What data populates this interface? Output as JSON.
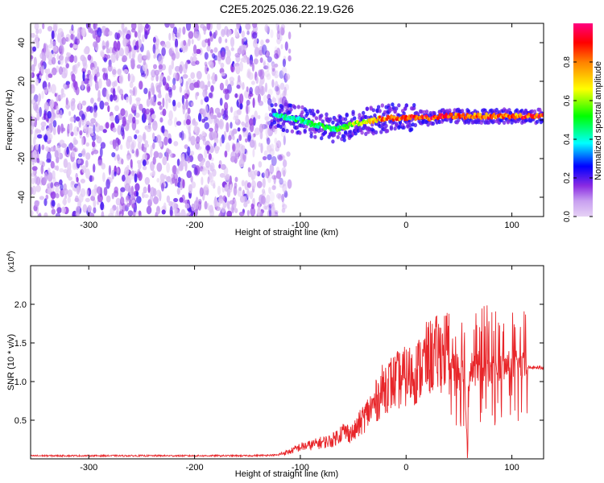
{
  "figure": {
    "title": "C2E5.2025.036.22.19.G26"
  },
  "colorbar": {
    "label": "Normalized spectral amplitude",
    "ticks": [
      0.0,
      0.2,
      0.4,
      0.6,
      0.8
    ],
    "tick_labels": [
      "0.0",
      "0.2",
      "0.4",
      "0.6",
      "0.8"
    ],
    "colors": [
      "#e6d2f5",
      "#8a2be2",
      "#0000ff",
      "#00ffff",
      "#00ff00",
      "#ffff00",
      "#ff8000",
      "#ff0000",
      "#ff0080"
    ]
  },
  "chart_data": [
    {
      "type": "heatmap",
      "xlabel": "Height of straight line (km)",
      "ylabel": "Frequency (Hz)",
      "xlim": [
        -355,
        130
      ],
      "ylim": [
        -50,
        50
      ],
      "xticks": [
        -300,
        -200,
        -100,
        0,
        100
      ],
      "xtick_labels": [
        "-300",
        "-200",
        "-100",
        "0",
        "100"
      ],
      "yticks": [
        -40,
        -20,
        0,
        20,
        40
      ],
      "ytick_labels": [
        "-40",
        "-20",
        "0",
        "20",
        "40"
      ],
      "ridge": {
        "x": [
          -125,
          -110,
          -100,
          -90,
          -80,
          -70,
          -60,
          -50,
          -40,
          -30,
          -20,
          -10,
          0,
          20,
          40,
          60,
          80,
          100,
          130
        ],
        "y": [
          3,
          1,
          0,
          -2,
          -3,
          -5,
          -4,
          -2,
          -1,
          0,
          1,
          1,
          1,
          1,
          2,
          2,
          2,
          2,
          2
        ],
        "amplitude": [
          0.45,
          0.5,
          0.5,
          0.5,
          0.55,
          0.5,
          0.6,
          0.65,
          0.7,
          0.8,
          0.9,
          0.9,
          0.95,
          0.95,
          0.95,
          0.9,
          0.9,
          0.9,
          0.95
        ]
      },
      "noise_region": {
        "x_from": -355,
        "x_to": -125
      }
    },
    {
      "type": "line",
      "xlabel": "Height of straight line (km)",
      "ylabel": "SNR (10 * v/v)",
      "scale_note": "(x10",
      "scale_exponent": "4",
      "xlim": [
        -355,
        130
      ],
      "ylim": [
        0,
        2.5
      ],
      "xticks": [
        -300,
        -200,
        -100,
        0,
        100
      ],
      "xtick_labels": [
        "-300",
        "-200",
        "-100",
        "0",
        "100"
      ],
      "yticks": [
        0.5,
        1.0,
        1.5,
        2.0
      ],
      "ytick_labels": [
        "0.5",
        "1.0",
        "1.5",
        "2.0"
      ],
      "color": "#e8262a",
      "series": [
        {
          "x": [
            -355,
            -300,
            -250,
            -200,
            -150,
            -120,
            -110,
            -100,
            -90,
            -80,
            -70,
            -60,
            -50,
            -40,
            -30,
            -20,
            -10,
            0,
            10,
            20,
            30,
            40,
            50,
            55,
            58,
            60,
            65,
            70,
            75,
            80,
            85,
            90,
            95,
            100,
            105,
            110,
            120,
            130
          ],
          "y": [
            0.04,
            0.04,
            0.04,
            0.04,
            0.04,
            0.05,
            0.08,
            0.13,
            0.15,
            0.18,
            0.2,
            0.3,
            0.28,
            0.45,
            0.6,
            0.8,
            0.85,
            0.9,
            0.95,
            1.1,
            1.15,
            1.2,
            1.2,
            1.2,
            0.1,
            1.2,
            1.2,
            1.2,
            1.2,
            1.2,
            1.2,
            1.15,
            1.2,
            1.2,
            1.2,
            1.18,
            1.18,
            1.18
          ]
        }
      ]
    }
  ]
}
